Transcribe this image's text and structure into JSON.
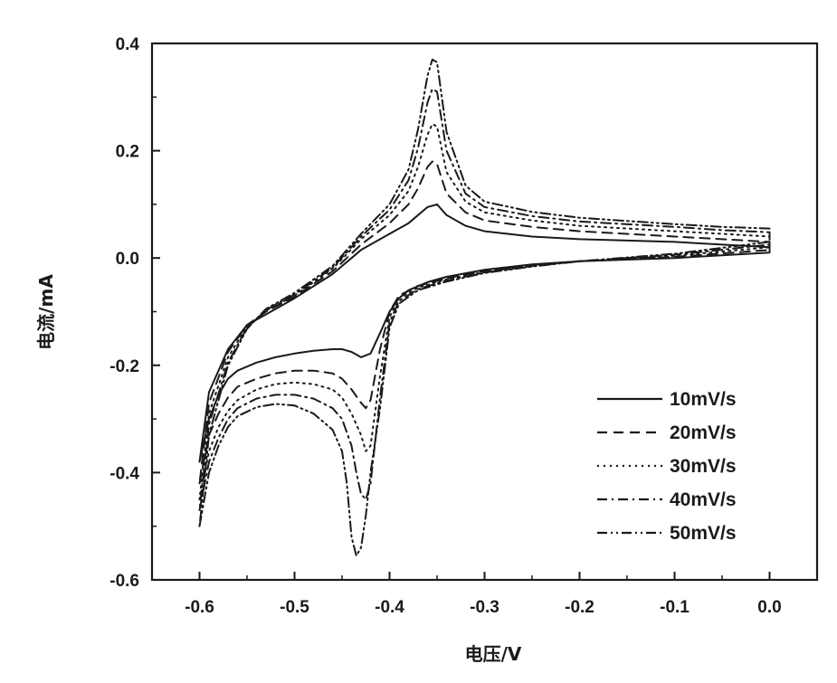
{
  "chart_data": {
    "type": "line",
    "title": "",
    "xlabel": "电压/V",
    "ylabel": "电流/mA",
    "xlim": [
      -0.65,
      0.05
    ],
    "ylim": [
      -0.6,
      0.4
    ],
    "xticks": [
      -0.6,
      -0.5,
      -0.4,
      -0.3,
      -0.2,
      -0.1,
      0.0
    ],
    "yticks": [
      -0.6,
      -0.4,
      -0.2,
      0.0,
      0.2,
      0.4
    ],
    "xtick_labels": [
      "-0.6",
      "-0.5",
      "-0.4",
      "-0.3",
      "-0.2",
      "-0.1",
      "0.0"
    ],
    "ytick_labels": [
      "-0.6",
      "-0.4",
      "-0.2",
      "0.0",
      "0.2",
      "0.4"
    ],
    "grid": false,
    "legend_position": "lower-right",
    "series": [
      {
        "name": "10mV/s",
        "line_style": "solid",
        "color": "#1a1a1a",
        "forward": [
          [
            -0.6,
            -0.38
          ],
          [
            -0.59,
            -0.3
          ],
          [
            -0.58,
            -0.255
          ],
          [
            -0.57,
            -0.225
          ],
          [
            -0.56,
            -0.21
          ],
          [
            -0.54,
            -0.195
          ],
          [
            -0.52,
            -0.185
          ],
          [
            -0.5,
            -0.178
          ],
          [
            -0.48,
            -0.173
          ],
          [
            -0.46,
            -0.17
          ],
          [
            -0.45,
            -0.17
          ],
          [
            -0.44,
            -0.175
          ],
          [
            -0.43,
            -0.185
          ],
          [
            -0.42,
            -0.178
          ],
          [
            -0.41,
            -0.14
          ],
          [
            -0.4,
            -0.1
          ],
          [
            -0.39,
            -0.075
          ],
          [
            -0.38,
            -0.06
          ],
          [
            -0.36,
            -0.045
          ],
          [
            -0.34,
            -0.035
          ],
          [
            -0.3,
            -0.022
          ],
          [
            -0.25,
            -0.012
          ],
          [
            -0.2,
            -0.006
          ],
          [
            -0.1,
            0.0
          ],
          [
            0.0,
            0.01
          ]
        ],
        "reverse": [
          [
            0.0,
            0.02
          ],
          [
            -0.05,
            0.025
          ],
          [
            -0.1,
            0.03
          ],
          [
            -0.2,
            0.035
          ],
          [
            -0.25,
            0.04
          ],
          [
            -0.3,
            0.05
          ],
          [
            -0.32,
            0.06
          ],
          [
            -0.34,
            0.08
          ],
          [
            -0.35,
            0.1
          ],
          [
            -0.36,
            0.095
          ],
          [
            -0.37,
            0.08
          ],
          [
            -0.38,
            0.065
          ],
          [
            -0.4,
            0.045
          ],
          [
            -0.43,
            0.015
          ],
          [
            -0.46,
            -0.03
          ],
          [
            -0.5,
            -0.075
          ],
          [
            -0.53,
            -0.105
          ],
          [
            -0.55,
            -0.125
          ],
          [
            -0.57,
            -0.17
          ],
          [
            -0.59,
            -0.25
          ],
          [
            -0.6,
            -0.38
          ]
        ]
      },
      {
        "name": "20mV/s",
        "line_style": "dashed",
        "color": "#1a1a1a",
        "forward": [
          [
            -0.6,
            -0.42
          ],
          [
            -0.59,
            -0.33
          ],
          [
            -0.58,
            -0.29
          ],
          [
            -0.57,
            -0.26
          ],
          [
            -0.56,
            -0.24
          ],
          [
            -0.54,
            -0.225
          ],
          [
            -0.52,
            -0.215
          ],
          [
            -0.5,
            -0.21
          ],
          [
            -0.48,
            -0.21
          ],
          [
            -0.46,
            -0.215
          ],
          [
            -0.45,
            -0.225
          ],
          [
            -0.44,
            -0.245
          ],
          [
            -0.43,
            -0.27
          ],
          [
            -0.425,
            -0.28
          ],
          [
            -0.42,
            -0.265
          ],
          [
            -0.41,
            -0.17
          ],
          [
            -0.4,
            -0.1
          ],
          [
            -0.39,
            -0.07
          ],
          [
            -0.37,
            -0.052
          ],
          [
            -0.34,
            -0.038
          ],
          [
            -0.3,
            -0.024
          ],
          [
            -0.25,
            -0.013
          ],
          [
            -0.2,
            -0.006
          ],
          [
            -0.1,
            0.002
          ],
          [
            0.0,
            0.015
          ]
        ],
        "reverse": [
          [
            0.0,
            0.03
          ],
          [
            -0.05,
            0.035
          ],
          [
            -0.1,
            0.04
          ],
          [
            -0.2,
            0.05
          ],
          [
            -0.25,
            0.058
          ],
          [
            -0.3,
            0.07
          ],
          [
            -0.32,
            0.085
          ],
          [
            -0.34,
            0.12
          ],
          [
            -0.35,
            0.175
          ],
          [
            -0.355,
            0.18
          ],
          [
            -0.36,
            0.17
          ],
          [
            -0.37,
            0.13
          ],
          [
            -0.38,
            0.1
          ],
          [
            -0.4,
            0.065
          ],
          [
            -0.43,
            0.025
          ],
          [
            -0.46,
            -0.025
          ],
          [
            -0.5,
            -0.072
          ],
          [
            -0.53,
            -0.1
          ],
          [
            -0.55,
            -0.125
          ],
          [
            -0.57,
            -0.175
          ],
          [
            -0.59,
            -0.27
          ],
          [
            -0.6,
            -0.42
          ]
        ]
      },
      {
        "name": "30mV/s",
        "line_style": "dotted",
        "color": "#1a1a1a",
        "forward": [
          [
            -0.6,
            -0.45
          ],
          [
            -0.59,
            -0.36
          ],
          [
            -0.58,
            -0.315
          ],
          [
            -0.57,
            -0.285
          ],
          [
            -0.56,
            -0.265
          ],
          [
            -0.54,
            -0.245
          ],
          [
            -0.52,
            -0.235
          ],
          [
            -0.5,
            -0.232
          ],
          [
            -0.48,
            -0.235
          ],
          [
            -0.46,
            -0.245
          ],
          [
            -0.45,
            -0.26
          ],
          [
            -0.44,
            -0.29
          ],
          [
            -0.43,
            -0.33
          ],
          [
            -0.425,
            -0.36
          ],
          [
            -0.42,
            -0.35
          ],
          [
            -0.41,
            -0.22
          ],
          [
            -0.4,
            -0.11
          ],
          [
            -0.39,
            -0.075
          ],
          [
            -0.37,
            -0.055
          ],
          [
            -0.34,
            -0.04
          ],
          [
            -0.3,
            -0.026
          ],
          [
            -0.25,
            -0.014
          ],
          [
            -0.2,
            -0.006
          ],
          [
            -0.1,
            0.004
          ],
          [
            0.0,
            0.02
          ]
        ],
        "reverse": [
          [
            0.0,
            0.04
          ],
          [
            -0.05,
            0.045
          ],
          [
            -0.1,
            0.05
          ],
          [
            -0.2,
            0.06
          ],
          [
            -0.25,
            0.07
          ],
          [
            -0.3,
            0.085
          ],
          [
            -0.32,
            0.105
          ],
          [
            -0.34,
            0.16
          ],
          [
            -0.35,
            0.245
          ],
          [
            -0.355,
            0.25
          ],
          [
            -0.36,
            0.23
          ],
          [
            -0.37,
            0.17
          ],
          [
            -0.38,
            0.125
          ],
          [
            -0.4,
            0.08
          ],
          [
            -0.43,
            0.035
          ],
          [
            -0.46,
            -0.02
          ],
          [
            -0.5,
            -0.07
          ],
          [
            -0.53,
            -0.098
          ],
          [
            -0.55,
            -0.128
          ],
          [
            -0.57,
            -0.185
          ],
          [
            -0.59,
            -0.29
          ],
          [
            -0.6,
            -0.45
          ]
        ]
      },
      {
        "name": "40mV/s",
        "line_style": "dash-dot",
        "color": "#1a1a1a",
        "forward": [
          [
            -0.6,
            -0.47
          ],
          [
            -0.59,
            -0.38
          ],
          [
            -0.58,
            -0.335
          ],
          [
            -0.57,
            -0.3
          ],
          [
            -0.56,
            -0.28
          ],
          [
            -0.54,
            -0.262
          ],
          [
            -0.52,
            -0.255
          ],
          [
            -0.5,
            -0.255
          ],
          [
            -0.48,
            -0.262
          ],
          [
            -0.46,
            -0.28
          ],
          [
            -0.45,
            -0.3
          ],
          [
            -0.44,
            -0.35
          ],
          [
            -0.435,
            -0.4
          ],
          [
            -0.43,
            -0.44
          ],
          [
            -0.425,
            -0.45
          ],
          [
            -0.42,
            -0.42
          ],
          [
            -0.41,
            -0.26
          ],
          [
            -0.4,
            -0.12
          ],
          [
            -0.39,
            -0.08
          ],
          [
            -0.37,
            -0.058
          ],
          [
            -0.34,
            -0.042
          ],
          [
            -0.3,
            -0.027
          ],
          [
            -0.25,
            -0.015
          ],
          [
            -0.2,
            -0.006
          ],
          [
            -0.1,
            0.006
          ],
          [
            0.0,
            0.025
          ]
        ],
        "reverse": [
          [
            0.0,
            0.048
          ],
          [
            -0.05,
            0.052
          ],
          [
            -0.1,
            0.058
          ],
          [
            -0.2,
            0.068
          ],
          [
            -0.25,
            0.078
          ],
          [
            -0.3,
            0.095
          ],
          [
            -0.32,
            0.12
          ],
          [
            -0.34,
            0.2
          ],
          [
            -0.35,
            0.31
          ],
          [
            -0.355,
            0.315
          ],
          [
            -0.36,
            0.29
          ],
          [
            -0.37,
            0.205
          ],
          [
            -0.38,
            0.145
          ],
          [
            -0.4,
            0.09
          ],
          [
            -0.43,
            0.04
          ],
          [
            -0.46,
            -0.018
          ],
          [
            -0.5,
            -0.068
          ],
          [
            -0.53,
            -0.097
          ],
          [
            -0.55,
            -0.13
          ],
          [
            -0.57,
            -0.195
          ],
          [
            -0.59,
            -0.31
          ],
          [
            -0.6,
            -0.47
          ]
        ]
      },
      {
        "name": "50mV/s",
        "line_style": "dash-dot-dot",
        "color": "#1a1a1a",
        "forward": [
          [
            -0.6,
            -0.5
          ],
          [
            -0.59,
            -0.4
          ],
          [
            -0.58,
            -0.35
          ],
          [
            -0.57,
            -0.315
          ],
          [
            -0.56,
            -0.295
          ],
          [
            -0.54,
            -0.278
          ],
          [
            -0.52,
            -0.272
          ],
          [
            -0.5,
            -0.275
          ],
          [
            -0.48,
            -0.29
          ],
          [
            -0.46,
            -0.32
          ],
          [
            -0.45,
            -0.36
          ],
          [
            -0.445,
            -0.42
          ],
          [
            -0.44,
            -0.52
          ],
          [
            -0.435,
            -0.555
          ],
          [
            -0.43,
            -0.54
          ],
          [
            -0.425,
            -0.48
          ],
          [
            -0.42,
            -0.4
          ],
          [
            -0.41,
            -0.28
          ],
          [
            -0.4,
            -0.13
          ],
          [
            -0.39,
            -0.085
          ],
          [
            -0.37,
            -0.06
          ],
          [
            -0.34,
            -0.044
          ],
          [
            -0.3,
            -0.028
          ],
          [
            -0.25,
            -0.016
          ],
          [
            -0.2,
            -0.006
          ],
          [
            -0.1,
            0.008
          ],
          [
            0.0,
            0.03
          ]
        ],
        "reverse": [
          [
            0.0,
            0.055
          ],
          [
            -0.05,
            0.058
          ],
          [
            -0.1,
            0.063
          ],
          [
            -0.2,
            0.075
          ],
          [
            -0.25,
            0.086
          ],
          [
            -0.3,
            0.105
          ],
          [
            -0.32,
            0.135
          ],
          [
            -0.34,
            0.235
          ],
          [
            -0.35,
            0.365
          ],
          [
            -0.355,
            0.37
          ],
          [
            -0.36,
            0.34
          ],
          [
            -0.37,
            0.24
          ],
          [
            -0.38,
            0.165
          ],
          [
            -0.4,
            0.1
          ],
          [
            -0.43,
            0.045
          ],
          [
            -0.46,
            -0.015
          ],
          [
            -0.5,
            -0.065
          ],
          [
            -0.53,
            -0.095
          ],
          [
            -0.55,
            -0.132
          ],
          [
            -0.57,
            -0.2
          ],
          [
            -0.59,
            -0.33
          ],
          [
            -0.6,
            -0.5
          ]
        ]
      }
    ]
  }
}
